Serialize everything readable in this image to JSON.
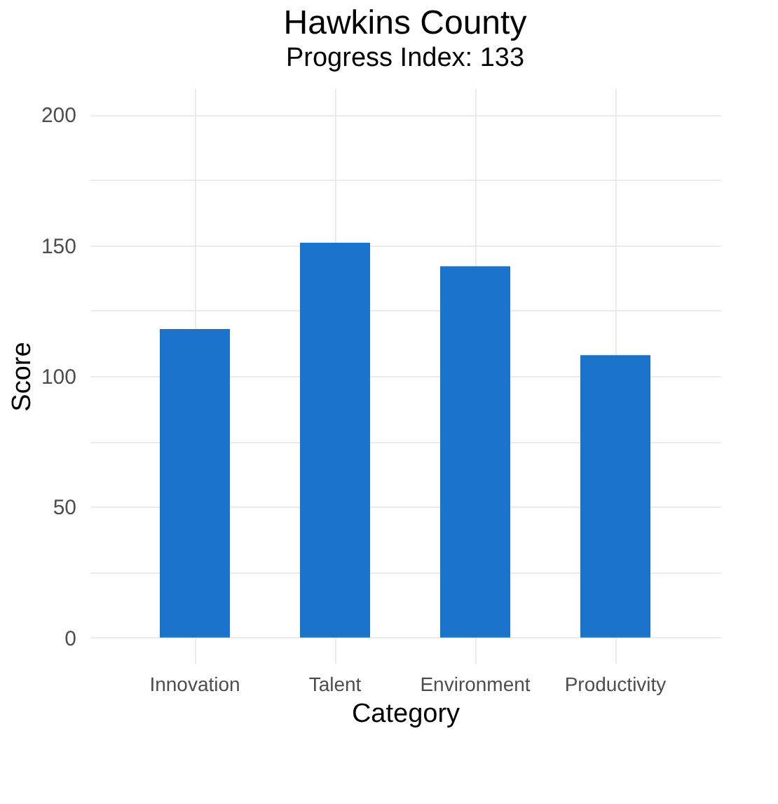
{
  "chart_data": {
    "type": "bar",
    "title": "Hawkins  County",
    "subtitle": "Progress Index: 133",
    "xlabel": "Category",
    "ylabel": "Score",
    "categories": [
      "Innovation",
      "Talent",
      "Environment",
      "Productivity"
    ],
    "values": [
      118,
      151,
      142,
      108
    ],
    "color": "#1c73cb",
    "ylim": [
      -10,
      210
    ],
    "yticks": [
      0,
      {
        "value": 25,
        "label": null
      },
      50,
      {
        "value": 75,
        "label": null
      },
      100,
      {
        "value": 125,
        "label": null
      },
      150,
      {
        "value": 175,
        "label": null
      },
      200
    ],
    "grid": true
  }
}
